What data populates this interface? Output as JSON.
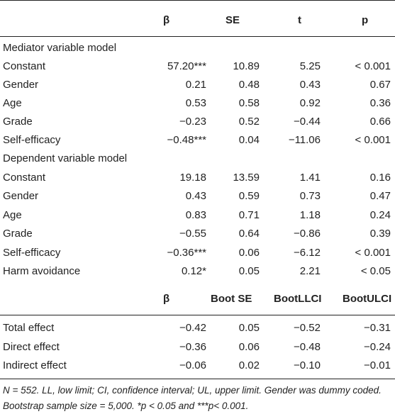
{
  "header1": {
    "col0": "",
    "beta": "β",
    "se": "SE",
    "t": "t",
    "p": "p"
  },
  "section1_label": "Mediator variable model",
  "mediator_rows": [
    {
      "var": "Constant",
      "beta": "57.20***",
      "se": "10.89",
      "t": "5.25",
      "p": "< 0.001"
    },
    {
      "var": "Gender",
      "beta": "0.21",
      "se": "0.48",
      "t": "0.43",
      "p": "0.67"
    },
    {
      "var": "Age",
      "beta": "0.53",
      "se": "0.58",
      "t": "0.92",
      "p": "0.36"
    },
    {
      "var": "Grade",
      "beta": "−0.23",
      "se": "0.52",
      "t": "−0.44",
      "p": "0.66"
    },
    {
      "var": "Self-efficacy",
      "beta": "−0.48***",
      "se": "0.04",
      "t": "−11.06",
      "p": "< 0.001"
    }
  ],
  "section2_label": "Dependent variable model",
  "dependent_rows": [
    {
      "var": "Constant",
      "beta": "19.18",
      "se": "13.59",
      "t": "1.41",
      "p": "0.16"
    },
    {
      "var": "Gender",
      "beta": "0.43",
      "se": "0.59",
      "t": "0.73",
      "p": "0.47"
    },
    {
      "var": "Age",
      "beta": "0.83",
      "se": "0.71",
      "t": "1.18",
      "p": "0.24"
    },
    {
      "var": "Grade",
      "beta": "−0.55",
      "se": "0.64",
      "t": "−0.86",
      "p": "0.39"
    },
    {
      "var": "Self-efficacy",
      "beta": "−0.36***",
      "se": "0.06",
      "t": "−6.12",
      "p": "< 0.001"
    },
    {
      "var": "Harm avoidance",
      "beta": "0.12*",
      "se": "0.05",
      "t": "2.21",
      "p": "< 0.05"
    }
  ],
  "header2": {
    "beta": "β",
    "boot_se": "Boot SE",
    "boot_llci": "BootLLCI",
    "boot_ulci": "BootULCI"
  },
  "effect_rows": [
    {
      "var": "Total effect",
      "beta": "−0.42",
      "se": "0.05",
      "llci": "−0.52",
      "ulci": "−0.31"
    },
    {
      "var": "Direct effect",
      "beta": "−0.36",
      "se": "0.06",
      "llci": "−0.48",
      "ulci": "−0.24"
    },
    {
      "var": "Indirect effect",
      "beta": "−0.06",
      "se": "0.02",
      "llci": "−0.10",
      "ulci": "−0.01"
    }
  ],
  "note_line1": "N = 552. LL, low limit; CI, confidence interval; UL, upper limit. Gender was dummy coded.",
  "note_line2": "Bootstrap sample size = 5,000. *p < 0.05 and ***p< 0.001."
}
